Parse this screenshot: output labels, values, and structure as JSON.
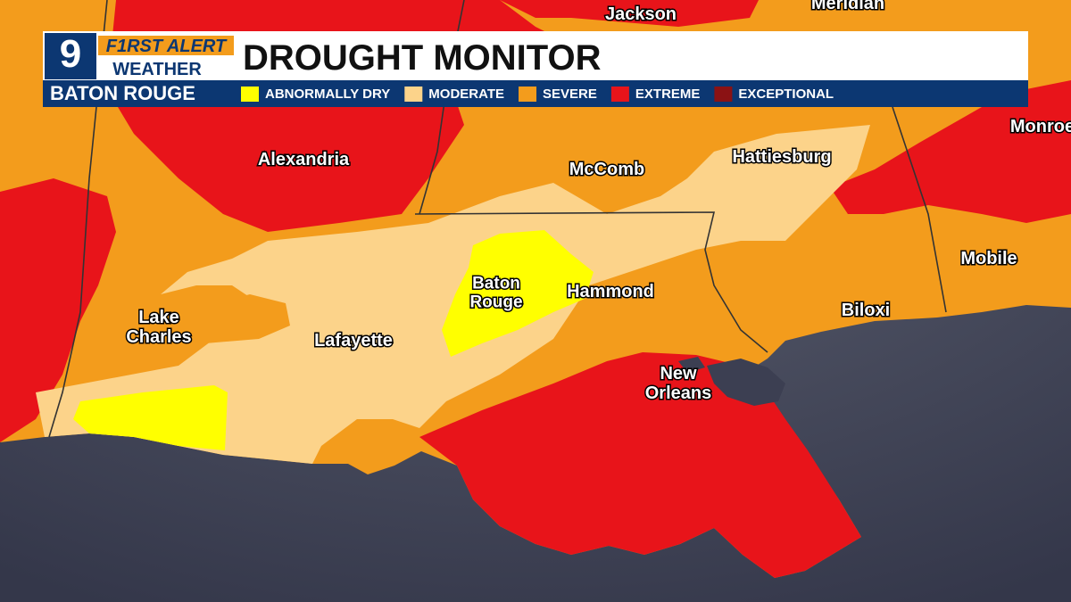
{
  "header": {
    "channel": "9",
    "brand_top": "F1RST ALERT",
    "brand_bottom": "WEATHER",
    "title": "DROUGHT MONITOR",
    "location": "BATON ROUGE"
  },
  "legend": [
    {
      "label": "ABNORMALLY DRY",
      "color": "#ffff00"
    },
    {
      "label": "MODERATE",
      "color": "#fcd38a"
    },
    {
      "label": "SEVERE",
      "color": "#f39c1c"
    },
    {
      "label": "EXTREME",
      "color": "#e8141a"
    },
    {
      "label": "EXCEPTIONAL",
      "color": "#8b1214"
    }
  ],
  "cities": [
    "Jackson",
    "Meridian",
    "Monroe",
    "Alexandria",
    "McComb",
    "Hattiesburg",
    "Mobile",
    "Baton Rouge",
    "Hammond",
    "Lake Charles",
    "Lafayette",
    "Biloxi",
    "New Orleans"
  ]
}
